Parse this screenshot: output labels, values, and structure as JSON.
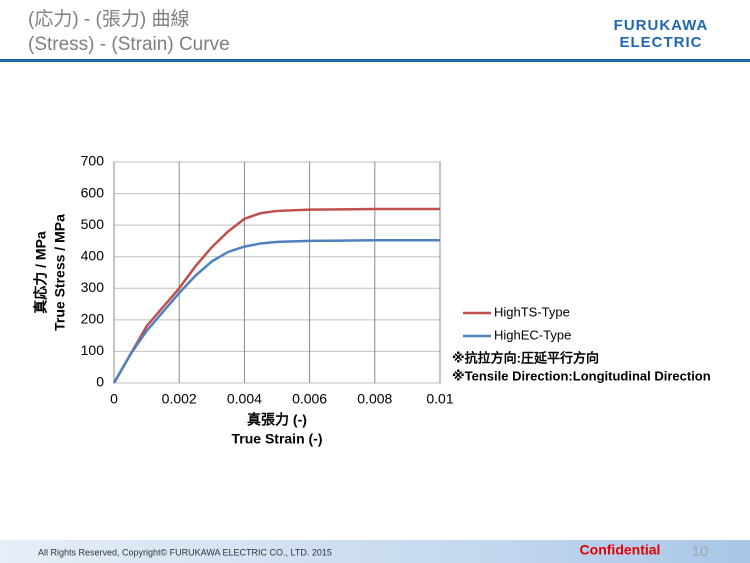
{
  "header": {
    "title": [
      "(応力) - (張力) 曲線",
      "(Stress) - (Strain) Curve"
    ],
    "logo": [
      "FURUKAWA",
      "ELECTRIC"
    ]
  },
  "chart_data": {
    "type": "line",
    "x_label": [
      "真張力 (-)",
      "True Strain (-)"
    ],
    "y_label": [
      "真応力 / MPa",
      "True Stress / MPa"
    ],
    "x": [
      0,
      0.0005,
      0.001,
      0.0015,
      0.002,
      0.0025,
      0.003,
      0.0035,
      0.004,
      0.0045,
      0.005,
      0.006,
      0.007,
      0.008,
      0.009,
      0.01
    ],
    "series": [
      {
        "name": "HighTS-Type",
        "color": "#c0504d",
        "values": [
          0,
          90,
          180,
          240,
          300,
          370,
          430,
          480,
          520,
          538,
          545,
          549,
          550,
          551,
          551,
          551
        ]
      },
      {
        "name": "HighEC-Type",
        "color": "#4f81bd",
        "values": [
          0,
          90,
          165,
          225,
          285,
          340,
          385,
          415,
          432,
          442,
          447,
          450,
          451,
          452,
          452,
          452
        ]
      }
    ],
    "xlim": [
      0,
      0.01
    ],
    "xticks": [
      0,
      0.002,
      0.004,
      0.006,
      0.008,
      0.01
    ],
    "ylim": [
      0,
      700
    ],
    "yticks": [
      0,
      100,
      200,
      300,
      400,
      500,
      600,
      700
    ],
    "grid": true,
    "notes": [
      "※抗拉方向:圧延平行方向",
      "※Tensile Direction:Longitudinal Direction"
    ]
  },
  "footer": {
    "copyright": "All Rights Reserved, Copyright© FURUKAWA ELECTRIC CO., LTD. 2015",
    "confidential": "Confidential",
    "page": "10"
  }
}
